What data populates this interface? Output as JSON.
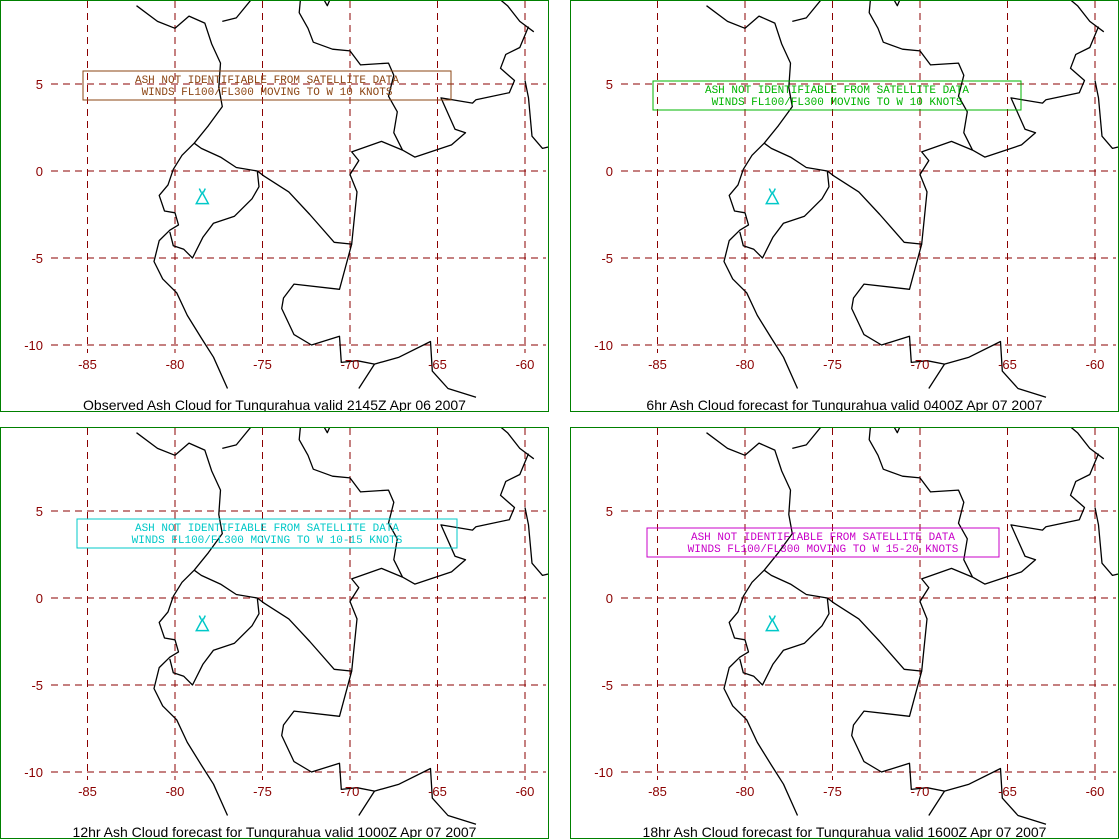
{
  "panels": [
    {
      "caption": "Observed Ash Cloud for Tungurahua valid 2145Z Apr 06 2007",
      "message_lines": [
        "ASH NOT IDENTIFIABLE FROM SATELLITE DATA",
        "WINDS FL100/FL300 MOVING TO W 10 KNOTS"
      ],
      "message_color": "#8b4513"
    },
    {
      "caption": "6hr Ash Cloud forecast for Tungurahua valid 0400Z Apr 07 2007",
      "message_lines": [
        "ASH NOT IDENTIFIABLE FROM SATELLITE DATA",
        "WINDS FL100/FL300 MOVING TO W 10 KNOTS"
      ],
      "message_color": "#00b400"
    },
    {
      "caption": "12hr Ash Cloud forecast for Tungurahua valid 1000Z Apr 07 2007",
      "message_lines": [
        "ASH NOT IDENTIFIABLE FROM SATELLITE DATA",
        "WINDS FL100/FL300 MOVING TO W 10-15 KNOTS"
      ],
      "message_color": "#00c8c8"
    },
    {
      "caption": "18hr Ash Cloud forecast for Tungurahua valid 1600Z Apr 07 2007",
      "message_lines": [
        "ASH NOT IDENTIFIABLE FROM SATELLITE DATA",
        "WINDS FL100/FL300 MOVING TO W 15-20 KNOTS"
      ],
      "message_color": "#c800c8"
    }
  ],
  "axes": {
    "lon_ticks": [
      "-85",
      "-80",
      "-75",
      "-70",
      "-65",
      "-60"
    ],
    "lat_ticks": [
      "5",
      "0",
      "-5",
      "-10"
    ]
  },
  "colors": {
    "frame": "#008000",
    "grid": "#8b0000",
    "coast": "#000000",
    "volcano": "#00c8c8"
  }
}
